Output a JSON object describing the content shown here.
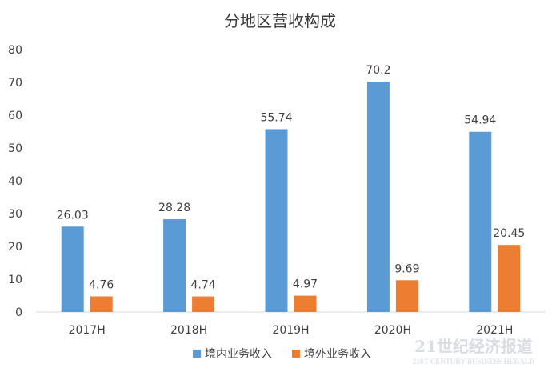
{
  "chart_data": {
    "type": "bar",
    "title": "分地区营收构成",
    "categories": [
      "2017H",
      "2018H",
      "2019H",
      "2020H",
      "2021H"
    ],
    "series": [
      {
        "name": "境内业务收入",
        "values": [
          26.03,
          28.28,
          55.74,
          70.2,
          54.94
        ],
        "labels": [
          "26.03",
          "28.28",
          "55.74",
          "70.2",
          "54.94"
        ],
        "color": "#5b9bd5"
      },
      {
        "name": "境外业务收入",
        "values": [
          4.76,
          4.74,
          4.97,
          9.69,
          20.45
        ],
        "labels": [
          "4.76",
          "4.74",
          "4.97",
          "9.69",
          "20.45"
        ],
        "color": "#ed7d31"
      }
    ],
    "ylim": [
      0,
      80
    ],
    "yticks": [
      0,
      10,
      20,
      30,
      40,
      50,
      60,
      70,
      80
    ],
    "grid": false,
    "legend_position": "bottom-center"
  },
  "watermark": {
    "main": "21世纪经济报道",
    "sub": "21ST CENTURY BUSINESS HERALD"
  }
}
